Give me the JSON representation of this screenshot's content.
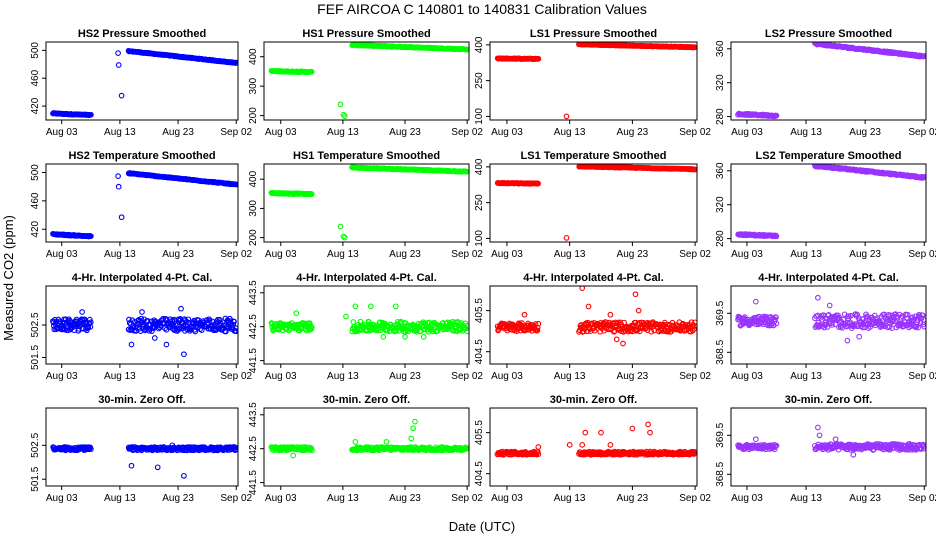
{
  "title": "FEF   AIRCOA C   140801 to 140831   Calibration Values",
  "xlabel": "Date (UTC)",
  "ylabel": "Measured CO2 (ppm)",
  "x_ticks": [
    "Aug 03",
    "Aug 13",
    "Aug 23",
    "Sep 02"
  ],
  "x_tick_days": [
    3,
    13,
    23,
    33
  ],
  "x_range_days": [
    0.3,
    33.3
  ],
  "series_colors": {
    "HS2": "#0000ff",
    "HS1": "#00ff00",
    "LS1": "#ff0000",
    "LS2": "#9933ff"
  },
  "row_titles": [
    "Pressure Smoothed",
    "Temperature Smoothed",
    "4-Hr. Interpolated 4-Pt. Cal.",
    "30-min. Zero Off."
  ],
  "chart_data": [
    {
      "type": "scatter",
      "series": "HS2",
      "row": 0,
      "title": "HS2 Pressure Smoothed",
      "ylim": [
        400,
        512
      ],
      "yticks": [
        "420",
        "460",
        "500"
      ],
      "ytick_values": [
        420,
        460,
        500
      ],
      "segments": [
        {
          "x0": 1.5,
          "x1": 8.0,
          "y0": 409.5,
          "y1": 407.0,
          "spread": 0.6,
          "n": 60
        },
        {
          "x0": 14.5,
          "x1": 33.0,
          "y0": 499.0,
          "y1": 482.0,
          "spread": 0.5,
          "n": 150
        }
      ],
      "outliers": [
        [
          12.7,
          496
        ],
        [
          12.8,
          479
        ],
        [
          13.3,
          435
        ]
      ]
    },
    {
      "type": "scatter",
      "series": "HS1",
      "row": 0,
      "title": "HS1 Pressure Smoothed",
      "ylim": [
        185,
        450
      ],
      "yticks": [
        "200",
        "300",
        "400"
      ],
      "ytick_values": [
        200,
        300,
        400
      ],
      "segments": [
        {
          "x0": 1.5,
          "x1": 8.0,
          "y0": 351.0,
          "y1": 348.0,
          "spread": 1.5,
          "n": 60
        },
        {
          "x0": 14.5,
          "x1": 33.0,
          "y0": 440.0,
          "y1": 425.0,
          "spread": 1.2,
          "n": 150
        }
      ],
      "outliers": [
        [
          12.6,
          238
        ],
        [
          13.1,
          203
        ],
        [
          13.3,
          198
        ]
      ]
    },
    {
      "type": "scatter",
      "series": "LS1",
      "row": 0,
      "title": "LS1 Pressure Smoothed",
      "ylim": [
        85,
        412
      ],
      "yticks": [
        "100",
        "250",
        "400"
      ],
      "ytick_values": [
        100,
        250,
        400
      ],
      "segments": [
        {
          "x0": 1.5,
          "x1": 8.0,
          "y0": 343.0,
          "y1": 341.0,
          "spread": 1.5,
          "n": 60
        },
        {
          "x0": 14.5,
          "x1": 33.0,
          "y0": 402.0,
          "y1": 390.0,
          "spread": 1.2,
          "n": 150
        }
      ],
      "outliers": [
        [
          12.5,
          100
        ]
      ]
    },
    {
      "type": "scatter",
      "series": "LS2",
      "row": 0,
      "title": "LS2 Pressure Smoothed",
      "ylim": [
        276,
        368
      ],
      "yticks": [
        "280",
        "320",
        "360"
      ],
      "ytick_values": [
        280,
        320,
        360
      ],
      "segments": [
        {
          "x0": 1.5,
          "x1": 8.0,
          "y0": 283.0,
          "y1": 281.0,
          "spread": 0.8,
          "n": 60
        },
        {
          "x0": 14.5,
          "x1": 33.0,
          "y0": 366.0,
          "y1": 351.0,
          "spread": 0.8,
          "n": 150
        }
      ],
      "outliers": []
    },
    {
      "type": "scatter",
      "series": "HS2",
      "row": 1,
      "title": "HS2 Temperature Smoothed",
      "ylim": [
        402,
        512
      ],
      "yticks": [
        "420",
        "460",
        "500"
      ],
      "ytick_values": [
        420,
        460,
        500
      ],
      "segments": [
        {
          "x0": 1.5,
          "x1": 8.0,
          "y0": 413.0,
          "y1": 410.0,
          "spread": 0.6,
          "n": 60
        },
        {
          "x0": 14.5,
          "x1": 33.0,
          "y0": 499.0,
          "y1": 483.0,
          "spread": 0.5,
          "n": 150
        }
      ],
      "outliers": [
        [
          12.7,
          495
        ],
        [
          12.8,
          480
        ],
        [
          13.3,
          437
        ]
      ]
    },
    {
      "type": "scatter",
      "series": "HS1",
      "row": 1,
      "title": "HS1 Temperature Smoothed",
      "ylim": [
        185,
        452
      ],
      "yticks": [
        "200",
        "300",
        "400"
      ],
      "ytick_values": [
        200,
        300,
        400
      ],
      "segments": [
        {
          "x0": 1.5,
          "x1": 8.0,
          "y0": 352.0,
          "y1": 349.0,
          "spread": 1.5,
          "n": 60
        },
        {
          "x0": 14.5,
          "x1": 33.0,
          "y0": 440.0,
          "y1": 426.0,
          "spread": 1.2,
          "n": 150
        }
      ],
      "outliers": [
        [
          12.6,
          238
        ],
        [
          13.1,
          204
        ],
        [
          13.3,
          200
        ]
      ]
    },
    {
      "type": "scatter",
      "series": "LS1",
      "row": 1,
      "title": "LS1 Temperature Smoothed",
      "ylim": [
        85,
        412
      ],
      "yticks": [
        "100",
        "250",
        "400"
      ],
      "ytick_values": [
        100,
        250,
        400
      ],
      "segments": [
        {
          "x0": 1.5,
          "x1": 8.0,
          "y0": 332.0,
          "y1": 330.0,
          "spread": 1.5,
          "n": 60
        },
        {
          "x0": 14.5,
          "x1": 33.0,
          "y0": 402.0,
          "y1": 390.0,
          "spread": 1.2,
          "n": 150
        }
      ],
      "outliers": [
        [
          12.5,
          102
        ]
      ]
    },
    {
      "type": "scatter",
      "series": "LS2",
      "row": 1,
      "title": "LS2 Temperature Smoothed",
      "ylim": [
        276,
        368
      ],
      "yticks": [
        "280",
        "320",
        "360"
      ],
      "ytick_values": [
        280,
        320,
        360
      ],
      "segments": [
        {
          "x0": 1.5,
          "x1": 8.0,
          "y0": 285.0,
          "y1": 283.0,
          "spread": 0.8,
          "n": 60
        },
        {
          "x0": 14.5,
          "x1": 33.0,
          "y0": 366.0,
          "y1": 352.0,
          "spread": 0.8,
          "n": 150
        }
      ],
      "outliers": []
    },
    {
      "type": "scatter",
      "series": "HS2",
      "row": 2,
      "title": "4-Hr. Interpolated 4-Pt. Cal.",
      "ylim": [
        501.3,
        503.7
      ],
      "yticks": [
        "501.5",
        "502.5"
      ],
      "ytick_values": [
        501.5,
        502.5
      ],
      "segments": [
        {
          "x0": 1.5,
          "x1": 8.0,
          "y0": 502.5,
          "y1": 502.5,
          "spread": 0.18,
          "n": 80
        },
        {
          "x0": 14.5,
          "x1": 33.0,
          "y0": 502.5,
          "y1": 502.5,
          "spread": 0.2,
          "n": 200
        }
      ],
      "outliers": [
        [
          6.5,
          502.9
        ],
        [
          15.0,
          501.9
        ],
        [
          16.8,
          502.9
        ],
        [
          19.0,
          502.1
        ],
        [
          21.0,
          501.9
        ],
        [
          23.5,
          503.0
        ],
        [
          24.0,
          501.6
        ]
      ]
    },
    {
      "type": "scatter",
      "series": "HS1",
      "row": 2,
      "title": "4-Hr. Interpolated 4-Pt. Cal.",
      "ylim": [
        441.4,
        443.7
      ],
      "yticks": [
        "441.5",
        "442.5",
        "443.5"
      ],
      "ytick_values": [
        441.5,
        442.5,
        443.5
      ],
      "segments": [
        {
          "x0": 1.5,
          "x1": 8.0,
          "y0": 442.5,
          "y1": 442.5,
          "spread": 0.12,
          "n": 80
        },
        {
          "x0": 14.5,
          "x1": 33.0,
          "y0": 442.5,
          "y1": 442.5,
          "spread": 0.15,
          "n": 200
        }
      ],
      "outliers": [
        [
          5.5,
          442.9
        ],
        [
          13.5,
          442.8
        ],
        [
          15.0,
          443.1
        ],
        [
          17.5,
          443.1
        ],
        [
          19.5,
          442.2
        ],
        [
          21.5,
          443.1
        ],
        [
          23.0,
          442.2
        ],
        [
          26.0,
          442.2
        ]
      ]
    },
    {
      "type": "scatter",
      "series": "LS1",
      "row": 2,
      "title": "4-Hr. Interpolated 4-Pt. Cal.",
      "ylim": [
        404.2,
        406.1
      ],
      "yticks": [
        "404.5",
        "405.5"
      ],
      "ytick_values": [
        404.5,
        405.5
      ],
      "segments": [
        {
          "x0": 1.5,
          "x1": 8.0,
          "y0": 405.1,
          "y1": 405.1,
          "spread": 0.1,
          "n": 80
        },
        {
          "x0": 14.5,
          "x1": 33.0,
          "y0": 405.1,
          "y1": 405.1,
          "spread": 0.12,
          "n": 200
        }
      ],
      "outliers": [
        [
          5.8,
          405.4
        ],
        [
          15.0,
          406.05
        ],
        [
          16.0,
          405.6
        ],
        [
          19.5,
          405.4
        ],
        [
          20.5,
          404.8
        ],
        [
          21.5,
          404.7
        ],
        [
          23.5,
          405.9
        ],
        [
          24.0,
          405.5
        ]
      ]
    },
    {
      "type": "scatter",
      "series": "LS2",
      "row": 2,
      "title": "4-Hr. Interpolated 4-Pt. Cal.",
      "ylim": [
        368.2,
        370.2
      ],
      "yticks": [
        "368.5",
        "369.5"
      ],
      "ytick_values": [
        368.5,
        369.5
      ],
      "segments": [
        {
          "x0": 1.5,
          "x1": 8.0,
          "y0": 369.3,
          "y1": 369.3,
          "spread": 0.12,
          "n": 80
        },
        {
          "x0": 14.5,
          "x1": 33.0,
          "y0": 369.3,
          "y1": 369.3,
          "spread": 0.18,
          "n": 200
        }
      ],
      "outliers": [
        [
          4.5,
          369.8
        ],
        [
          15.0,
          369.9
        ],
        [
          20.0,
          368.8
        ],
        [
          22.0,
          368.9
        ],
        [
          17.0,
          369.7
        ]
      ]
    },
    {
      "type": "scatter",
      "series": "HS2",
      "row": 3,
      "title": "30-min. Zero Off.",
      "ylim": [
        501.3,
        503.6
      ],
      "yticks": [
        "501.5",
        "502.5"
      ],
      "ytick_values": [
        501.5,
        502.5
      ],
      "segments": [
        {
          "x0": 1.5,
          "x1": 8.0,
          "y0": 502.4,
          "y1": 502.4,
          "spread": 0.05,
          "n": 70
        },
        {
          "x0": 14.5,
          "x1": 33.0,
          "y0": 502.4,
          "y1": 502.4,
          "spread": 0.05,
          "n": 200
        }
      ],
      "outliers": [
        [
          15.0,
          501.9
        ],
        [
          19.5,
          501.85
        ],
        [
          22.0,
          502.5
        ],
        [
          24.0,
          501.6
        ]
      ]
    },
    {
      "type": "scatter",
      "series": "HS1",
      "row": 3,
      "title": "30-min. Zero Off.",
      "ylim": [
        441.4,
        443.7
      ],
      "yticks": [
        "441.5",
        "442.5",
        "443.5"
      ],
      "ytick_values": [
        441.5,
        442.5,
        443.5
      ],
      "segments": [
        {
          "x0": 1.5,
          "x1": 8.0,
          "y0": 442.5,
          "y1": 442.5,
          "spread": 0.05,
          "n": 70
        },
        {
          "x0": 14.5,
          "x1": 33.0,
          "y0": 442.5,
          "y1": 442.5,
          "spread": 0.05,
          "n": 200
        }
      ],
      "outliers": [
        [
          5.0,
          442.3
        ],
        [
          15.0,
          442.7
        ],
        [
          20.0,
          442.7
        ],
        [
          24.0,
          442.8
        ],
        [
          24.3,
          443.1
        ],
        [
          24.6,
          443.3
        ]
      ]
    },
    {
      "type": "scatter",
      "series": "LS1",
      "row": 3,
      "title": "30-min. Zero Off.",
      "ylim": [
        404.2,
        406.1
      ],
      "yticks": [
        "404.5",
        "405.5"
      ],
      "ytick_values": [
        404.5,
        405.5
      ],
      "segments": [
        {
          "x0": 1.5,
          "x1": 8.0,
          "y0": 405.0,
          "y1": 405.0,
          "spread": 0.04,
          "n": 70
        },
        {
          "x0": 14.5,
          "x1": 33.0,
          "y0": 405.0,
          "y1": 405.0,
          "spread": 0.04,
          "n": 200
        }
      ],
      "outliers": [
        [
          8.0,
          405.15
        ],
        [
          13.0,
          405.2
        ],
        [
          15.0,
          405.2
        ],
        [
          15.5,
          405.5
        ],
        [
          18.0,
          405.5
        ],
        [
          19.5,
          405.2
        ],
        [
          23.0,
          405.6
        ],
        [
          25.5,
          405.7
        ],
        [
          25.8,
          405.5
        ]
      ]
    },
    {
      "type": "scatter",
      "series": "LS2",
      "row": 3,
      "title": "30-min. Zero Off.",
      "ylim": [
        368.2,
        370.2
      ],
      "yticks": [
        "368.5",
        "369.5"
      ],
      "ytick_values": [
        368.5,
        369.5
      ],
      "segments": [
        {
          "x0": 1.5,
          "x1": 8.0,
          "y0": 369.2,
          "y1": 369.2,
          "spread": 0.06,
          "n": 70
        },
        {
          "x0": 14.5,
          "x1": 33.0,
          "y0": 369.2,
          "y1": 369.2,
          "spread": 0.08,
          "n": 200
        }
      ],
      "outliers": [
        [
          4.5,
          369.4
        ],
        [
          15.0,
          369.7
        ],
        [
          15.3,
          369.5
        ],
        [
          18.0,
          369.4
        ],
        [
          21.0,
          369.0
        ]
      ]
    }
  ]
}
